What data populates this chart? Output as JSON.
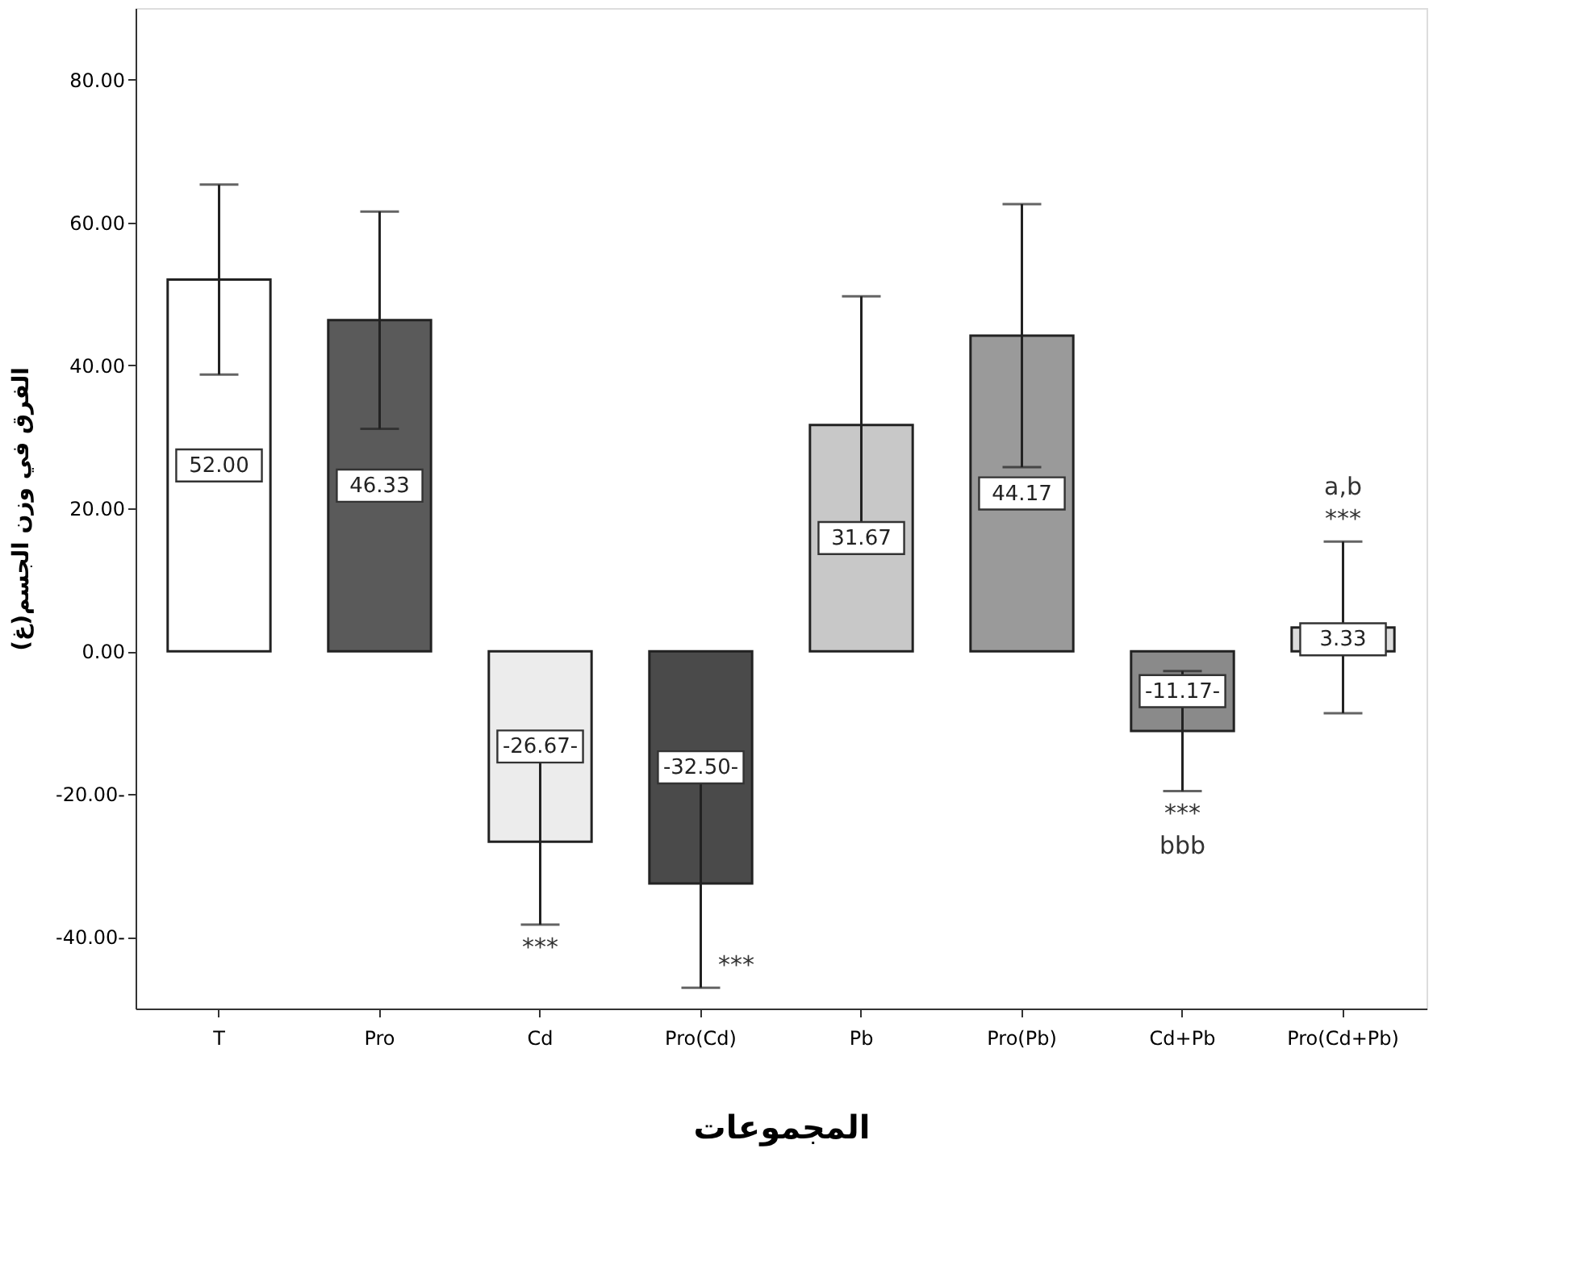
{
  "chart_data": {
    "type": "bar",
    "xlabel": "المجموعات",
    "ylabel": "الفرق في وزن الجسم(غ)",
    "categories": [
      "T",
      "Pro",
      "Cd",
      "Pro(Cd)",
      "Pb",
      "Pro(Pb)",
      "Cd+Pb",
      "Pro(Cd+Pb)"
    ],
    "values": [
      52.0,
      46.33,
      -26.67,
      -32.5,
      31.67,
      44.17,
      -11.17,
      3.33
    ],
    "colors": [
      "#ffffff",
      "#5a5a5a",
      "#ececec",
      "#4a4a4a",
      "#c8c8c8",
      "#9a9a9a",
      "#8a8a8a",
      "#dddddd"
    ],
    "errors": [
      13.3,
      15.2,
      11.6,
      14.6,
      18.0,
      18.4,
      8.4,
      12.0
    ],
    "value_labels": [
      "52.00",
      "46.33",
      "-26.67-",
      "-32.50-",
      "31.67",
      "44.17",
      "-11.17-",
      "3.33"
    ],
    "ylim": [
      -50,
      90
    ],
    "yticks": [
      {
        "value": -40,
        "label": "-40.00-"
      },
      {
        "value": -20,
        "label": "-20.00-"
      },
      {
        "value": 0,
        "label": "0.00"
      },
      {
        "value": 20,
        "label": "20.00"
      },
      {
        "value": 40,
        "label": "40.00"
      },
      {
        "value": 60,
        "label": "60.00"
      },
      {
        "value": 80,
        "label": "80.00"
      }
    ],
    "grid": false,
    "annotations": [
      {
        "text": "***",
        "x": "Cd",
        "y": -38.27
      },
      {
        "text": "***",
        "x": "Pro(Cd)",
        "y": -47.1
      },
      {
        "text": "***",
        "x": "Cd+Pb",
        "y": -19.57
      },
      {
        "text": "bbb",
        "x": "Cd+Pb",
        "y": -19.57
      },
      {
        "text": "***",
        "x": "Pro(Cd+Pb)",
        "y": 15.33
      },
      {
        "text": "a,b",
        "x": "Pro(Cd+Pb)",
        "y": 15.33
      }
    ]
  }
}
